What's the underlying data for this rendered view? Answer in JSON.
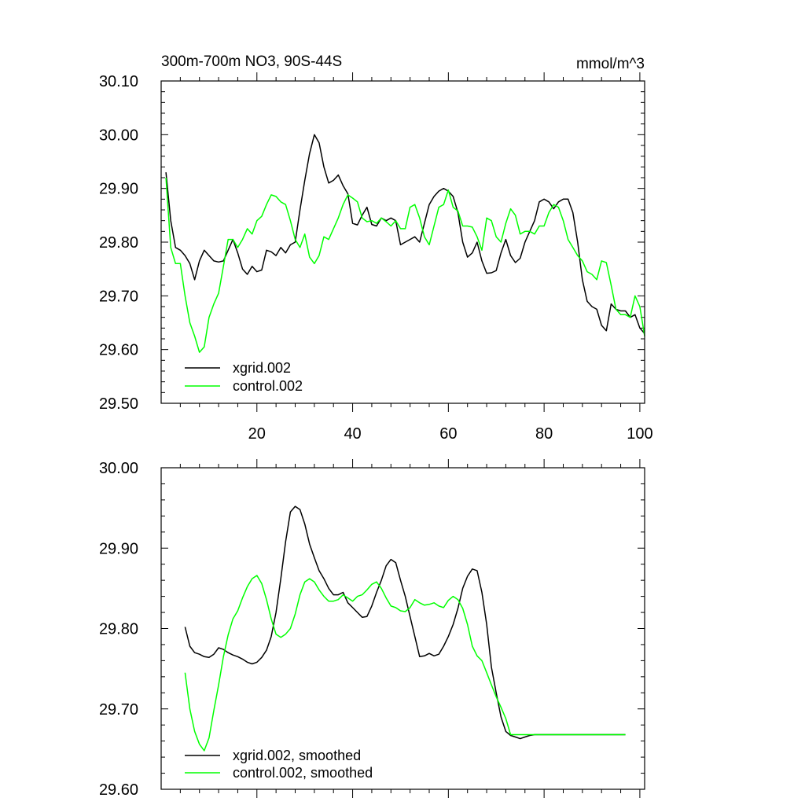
{
  "chart_data": [
    {
      "type": "line",
      "title_left": "300m-700m NO3, 90S-44S",
      "title_right": "mmol/m^3",
      "xlabel": "",
      "ylabel": "",
      "xlim": [
        0,
        101
      ],
      "ylim": [
        29.5,
        30.1
      ],
      "x_ticks": [
        20,
        40,
        60,
        80,
        100
      ],
      "x_tick_labels": [
        "20",
        "40",
        "60",
        "80",
        "100"
      ],
      "y_ticks": [
        29.5,
        29.6,
        29.7,
        29.8,
        29.9,
        30.0,
        30.1
      ],
      "y_tick_labels": [
        "29.50",
        "29.60",
        "29.70",
        "29.80",
        "29.90",
        "30.00",
        "30.10"
      ],
      "legend_position": "lower-left",
      "series": [
        {
          "name": "xgrid.002",
          "color": "#000000",
          "x": [
            1,
            2,
            3,
            4,
            5,
            6,
            7,
            8,
            9,
            10,
            11,
            12,
            13,
            14,
            15,
            16,
            17,
            18,
            19,
            20,
            21,
            22,
            23,
            24,
            25,
            26,
            27,
            28,
            29,
            30,
            31,
            32,
            33,
            34,
            35,
            36,
            37,
            38,
            39,
            40,
            41,
            42,
            43,
            44,
            45,
            46,
            47,
            48,
            49,
            50,
            51,
            52,
            53,
            54,
            55,
            56,
            57,
            58,
            59,
            60,
            61,
            62,
            63,
            64,
            65,
            66,
            67,
            68,
            69,
            70,
            71,
            72,
            73,
            74,
            75,
            76,
            77,
            78,
            79,
            80,
            81,
            82,
            83,
            84,
            85,
            86,
            87,
            88,
            89,
            90,
            91,
            92,
            93,
            94,
            95,
            96,
            97,
            98,
            99,
            100,
            101
          ],
          "values": [
            29.93,
            29.84,
            29.79,
            29.785,
            29.775,
            29.76,
            29.73,
            29.765,
            29.785,
            29.775,
            29.765,
            29.763,
            29.765,
            29.785,
            29.805,
            29.78,
            29.75,
            29.74,
            29.755,
            29.745,
            29.748,
            29.785,
            29.782,
            29.775,
            29.79,
            29.78,
            29.795,
            29.8,
            29.86,
            29.915,
            29.965,
            30.0,
            29.985,
            29.94,
            29.91,
            29.915,
            29.925,
            29.905,
            29.89,
            29.835,
            29.832,
            29.85,
            29.865,
            29.833,
            29.83,
            29.845,
            29.84,
            29.845,
            29.84,
            29.795,
            29.8,
            29.805,
            29.81,
            29.8,
            29.835,
            29.87,
            29.885,
            29.895,
            29.9,
            29.895,
            29.885,
            29.855,
            29.8,
            29.772,
            29.78,
            29.8,
            29.765,
            29.742,
            29.743,
            29.747,
            29.78,
            29.805,
            29.775,
            29.762,
            29.77,
            29.8,
            29.82,
            29.84,
            29.875,
            29.88,
            29.875,
            29.862,
            29.875,
            29.88,
            29.88,
            29.855,
            29.8,
            29.73,
            29.69,
            29.68,
            29.675,
            29.645,
            29.635,
            29.685,
            29.675,
            29.672,
            29.672,
            29.66,
            29.665,
            29.64,
            29.63
          ]
        },
        {
          "name": "control.002",
          "color": "#00ff00",
          "x": [
            1,
            2,
            3,
            4,
            5,
            6,
            7,
            8,
            9,
            10,
            11,
            12,
            13,
            14,
            15,
            16,
            17,
            18,
            19,
            20,
            21,
            22,
            23,
            24,
            25,
            26,
            27,
            28,
            29,
            30,
            31,
            32,
            33,
            34,
            35,
            36,
            37,
            38,
            39,
            40,
            41,
            42,
            43,
            44,
            45,
            46,
            47,
            48,
            49,
            50,
            51,
            52,
            53,
            54,
            55,
            56,
            57,
            58,
            59,
            60,
            61,
            62,
            63,
            64,
            65,
            66,
            67,
            68,
            69,
            70,
            71,
            72,
            73,
            74,
            75,
            76,
            77,
            78,
            79,
            80,
            81,
            82,
            83,
            84,
            85,
            86,
            87,
            88,
            89,
            90,
            91,
            92,
            93,
            94,
            95,
            96,
            97,
            98,
            99,
            100,
            101
          ],
          "values": [
            29.92,
            29.79,
            29.76,
            29.76,
            29.7,
            29.65,
            29.625,
            29.595,
            29.605,
            29.66,
            29.685,
            29.705,
            29.755,
            29.805,
            29.805,
            29.79,
            29.805,
            29.825,
            29.815,
            29.84,
            29.848,
            29.87,
            29.888,
            29.885,
            29.875,
            29.87,
            29.84,
            29.805,
            29.79,
            29.815,
            29.772,
            29.76,
            29.775,
            29.81,
            29.805,
            29.825,
            29.845,
            29.87,
            29.888,
            29.882,
            29.875,
            29.845,
            29.838,
            29.84,
            29.835,
            29.845,
            29.838,
            29.83,
            29.84,
            29.825,
            29.825,
            29.865,
            29.87,
            29.845,
            29.81,
            29.795,
            29.83,
            29.865,
            29.87,
            29.897,
            29.865,
            29.858,
            29.83,
            29.83,
            29.828,
            29.81,
            29.785,
            29.845,
            29.84,
            29.81,
            29.8,
            29.835,
            29.862,
            29.85,
            29.815,
            29.82,
            29.82,
            29.815,
            29.83,
            29.83,
            29.855,
            29.87,
            29.865,
            29.84,
            29.805,
            29.79,
            29.775,
            29.765,
            29.745,
            29.74,
            29.73,
            29.765,
            29.762,
            29.72,
            29.675,
            29.665,
            29.665,
            29.66,
            29.7,
            29.68,
            29.625
          ]
        }
      ]
    },
    {
      "type": "line",
      "title_left": "",
      "title_right": "",
      "xlabel": "",
      "ylabel": "",
      "xlim": [
        0,
        101
      ],
      "ylim": [
        29.6,
        30.0
      ],
      "x_ticks": [
        20,
        40,
        60,
        80,
        100
      ],
      "x_tick_labels": [],
      "y_ticks": [
        29.6,
        29.7,
        29.8,
        29.9,
        30.0
      ],
      "y_tick_labels": [
        "29.60",
        "29.70",
        "29.80",
        "29.90",
        "30.00"
      ],
      "legend_position": "lower-left",
      "series": [
        {
          "name": "xgrid.002, smoothed",
          "color": "#000000",
          "x": [
            5,
            6,
            7,
            8,
            9,
            10,
            11,
            12,
            13,
            14,
            15,
            16,
            17,
            18,
            19,
            20,
            21,
            22,
            23,
            24,
            25,
            26,
            27,
            28,
            29,
            30,
            31,
            32,
            33,
            34,
            35,
            36,
            37,
            38,
            39,
            40,
            41,
            42,
            43,
            44,
            45,
            46,
            47,
            48,
            49,
            50,
            51,
            52,
            53,
            54,
            55,
            56,
            57,
            58,
            59,
            60,
            61,
            62,
            63,
            64,
            65,
            66,
            67,
            68,
            69,
            70,
            71,
            72,
            73,
            74,
            75,
            76,
            77,
            78,
            79,
            80,
            81,
            82,
            83,
            84,
            85,
            86,
            87,
            88,
            89,
            90,
            91,
            92,
            93,
            94,
            95,
            96,
            97
          ],
          "values": [
            29.802,
            29.778,
            29.77,
            29.768,
            29.765,
            29.764,
            29.768,
            29.776,
            29.774,
            29.77,
            29.767,
            29.765,
            29.762,
            29.758,
            29.756,
            29.758,
            29.764,
            29.773,
            29.79,
            29.82,
            29.862,
            29.908,
            29.945,
            29.952,
            29.948,
            29.93,
            29.905,
            29.888,
            29.872,
            29.862,
            29.85,
            29.842,
            29.842,
            29.845,
            29.832,
            29.826,
            29.82,
            29.814,
            29.815,
            29.828,
            29.845,
            29.86,
            29.878,
            29.886,
            29.882,
            29.86,
            29.84,
            29.815,
            29.79,
            29.765,
            29.766,
            29.769,
            29.766,
            29.768,
            29.778,
            29.79,
            29.805,
            29.825,
            29.85,
            29.865,
            29.874,
            29.872,
            29.845,
            29.805,
            29.752,
            29.72,
            29.69,
            29.672,
            29.667,
            29.665,
            29.663,
            29.665,
            29.667,
            29.668,
            29.668,
            29.668,
            29.668,
            29.668,
            29.668,
            29.668,
            29.668,
            29.668,
            29.668,
            29.668,
            29.668,
            29.668,
            29.668,
            29.668,
            29.668,
            29.668,
            29.668,
            29.668,
            29.668
          ]
        },
        {
          "name": "control.002, smoothed",
          "color": "#00ff00",
          "x": [
            5,
            6,
            7,
            8,
            9,
            10,
            11,
            12,
            13,
            14,
            15,
            16,
            17,
            18,
            19,
            20,
            21,
            22,
            23,
            24,
            25,
            26,
            27,
            28,
            29,
            30,
            31,
            32,
            33,
            34,
            35,
            36,
            37,
            38,
            39,
            40,
            41,
            42,
            43,
            44,
            45,
            46,
            47,
            48,
            49,
            50,
            51,
            52,
            53,
            54,
            55,
            56,
            57,
            58,
            59,
            60,
            61,
            62,
            63,
            64,
            65,
            66,
            67,
            68,
            69,
            70,
            71,
            72,
            73,
            74,
            75,
            76,
            77,
            78,
            79,
            80,
            81,
            82,
            83,
            84,
            85,
            86,
            87,
            88,
            89,
            90,
            91,
            92,
            93,
            94,
            95,
            96,
            97
          ],
          "values": [
            29.745,
            29.7,
            29.672,
            29.656,
            29.648,
            29.664,
            29.698,
            29.73,
            29.765,
            29.792,
            29.812,
            29.822,
            29.838,
            29.852,
            29.862,
            29.866,
            29.856,
            29.836,
            29.812,
            29.793,
            29.789,
            29.793,
            29.8,
            29.818,
            29.842,
            29.858,
            29.862,
            29.858,
            29.848,
            29.84,
            29.834,
            29.834,
            29.836,
            29.842,
            29.838,
            29.834,
            29.84,
            29.842,
            29.848,
            29.855,
            29.858,
            29.85,
            29.838,
            29.828,
            29.826,
            29.822,
            29.821,
            29.826,
            29.836,
            29.832,
            29.829,
            29.83,
            29.832,
            29.828,
            29.826,
            29.835,
            29.84,
            29.836,
            29.825,
            29.805,
            29.778,
            29.766,
            29.76,
            29.745,
            29.73,
            29.715,
            29.702,
            29.688,
            29.668,
            29.668,
            29.668,
            29.668,
            29.668,
            29.668,
            29.668,
            29.668,
            29.668,
            29.668,
            29.668,
            29.668,
            29.668,
            29.668,
            29.668,
            29.668,
            29.668,
            29.668,
            29.668,
            29.668,
            29.668,
            29.668,
            29.668,
            29.668,
            29.668
          ]
        }
      ]
    }
  ]
}
